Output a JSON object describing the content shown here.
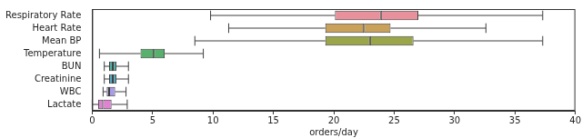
{
  "chart_data": {
    "type": "boxplot",
    "orientation": "horizontal",
    "x_label": "orders/day",
    "categories": [
      "Respiratory Rate",
      "Heart Rate",
      "Mean BP",
      "Temperature",
      "BUN",
      "Creatinine",
      "WBC",
      "Lactate"
    ],
    "values": [
      {
        "min": 9.8,
        "q1": 20.1,
        "median": 23.9,
        "q3": 27.0,
        "max": 37.3
      },
      {
        "min": 11.3,
        "q1": 19.3,
        "median": 22.5,
        "q3": 24.7,
        "max": 32.6
      },
      {
        "min": 8.5,
        "q1": 19.3,
        "median": 23.0,
        "q3": 26.6,
        "max": 37.3
      },
      {
        "min": 0.6,
        "q1": 4.0,
        "median": 5.1,
        "q3": 6.0,
        "max": 9.2
      },
      {
        "min": 1.0,
        "q1": 1.4,
        "median": 1.7,
        "q3": 2.0,
        "max": 3.0
      },
      {
        "min": 1.0,
        "q1": 1.4,
        "median": 1.7,
        "q3": 2.0,
        "max": 3.0
      },
      {
        "min": 0.9,
        "q1": 1.2,
        "median": 1.4,
        "q3": 1.9,
        "max": 2.8
      },
      {
        "min": 0.0,
        "q1": 0.5,
        "median": 0.9,
        "q3": 1.6,
        "max": 2.9
      }
    ],
    "colors": [
      "#e8919c",
      "#c9a15a",
      "#9ba64b",
      "#57b06b",
      "#50b0a4",
      "#56aac2",
      "#a99be6",
      "#df82d4"
    ],
    "xlim": [
      0,
      40
    ],
    "xticks": [
      0,
      5,
      10,
      15,
      20,
      25,
      30,
      35,
      40
    ],
    "grid": false
  }
}
